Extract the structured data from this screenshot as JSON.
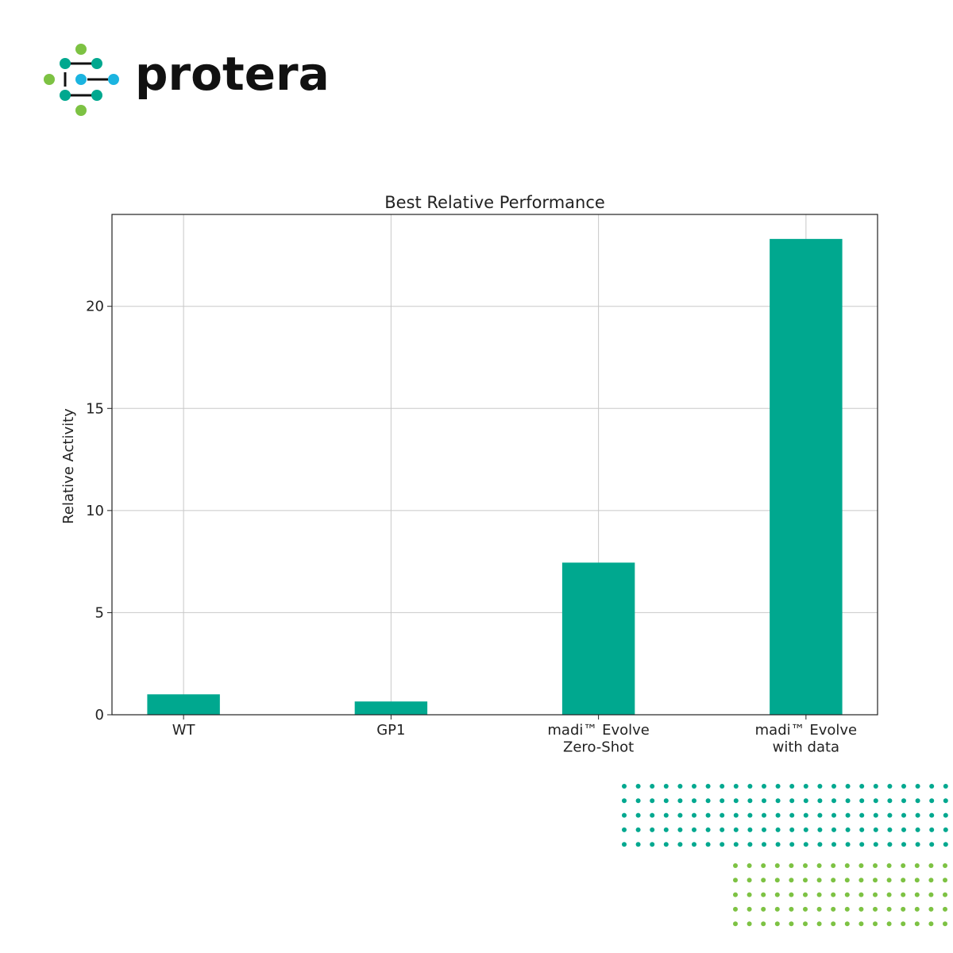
{
  "logo": {
    "name": "protera"
  },
  "chart_data": {
    "type": "bar",
    "title": "Best Relative Performance",
    "y_label": "Relative Activity",
    "categories": [
      "WT",
      "GP1",
      "madi™ Evolve\nZero-Shot",
      "madi™ Evolve\nwith data"
    ],
    "values": [
      1.0,
      0.65,
      7.45,
      23.3
    ],
    "color": "#00a88f",
    "ylim": [
      0,
      24.5
    ],
    "yticks": [
      0,
      5,
      10,
      15,
      20
    ],
    "grid": true
  }
}
